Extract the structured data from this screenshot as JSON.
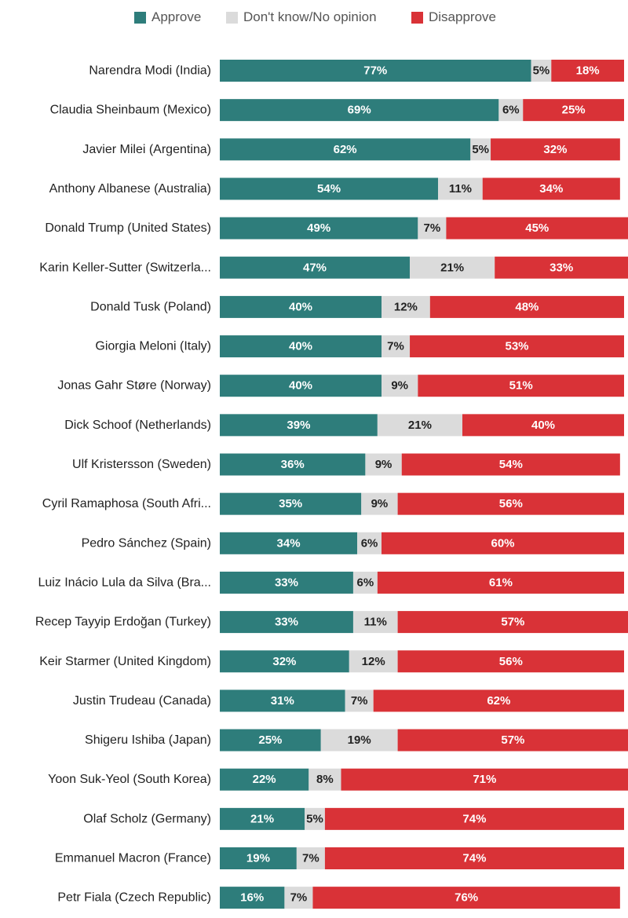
{
  "chart_data": {
    "type": "bar",
    "orientation": "horizontal",
    "stacked": true,
    "title": "",
    "xlabel": "",
    "ylabel": "",
    "xlim": [
      0,
      100
    ],
    "grid": false,
    "legend_position": "top-center",
    "categories": [
      "Narendra Modi (India)",
      "Claudia Sheinbaum (Mexico)",
      "Javier Milei (Argentina)",
      "Anthony Albanese (Australia)",
      "Donald Trump (United States)",
      "Karin Keller-Sutter (Switzerla...",
      "Donald Tusk (Poland)",
      "Giorgia Meloni (Italy)",
      "Jonas Gahr Støre (Norway)",
      "Dick Schoof (Netherlands)",
      "Ulf Kristersson (Sweden)",
      "Cyril Ramaphosa (South Afri...",
      "Pedro Sánchez (Spain)",
      "Luiz Inácio Lula da Silva (Bra...",
      "Recep Tayyip Erdoğan (Turkey)",
      "Keir Starmer (United Kingdom)",
      "Justin Trudeau (Canada)",
      "Shigeru Ishiba (Japan)",
      "Yoon Suk-Yeol (South Korea)",
      "Olaf Scholz (Germany)",
      "Emmanuel Macron (France)",
      "Petr Fiala (Czech Republic)"
    ],
    "series": [
      {
        "name": "Approve",
        "color": "#2E7D7B",
        "label_color": "#ffffff",
        "values": [
          77,
          69,
          62,
          54,
          49,
          47,
          40,
          40,
          40,
          39,
          36,
          35,
          34,
          33,
          33,
          32,
          31,
          25,
          22,
          21,
          19,
          16
        ]
      },
      {
        "name": "Don't know/No opinion",
        "color": "#DBDBDB",
        "label_color": "#222222",
        "values": [
          5,
          6,
          5,
          11,
          7,
          21,
          12,
          7,
          9,
          21,
          9,
          9,
          6,
          6,
          11,
          12,
          7,
          19,
          8,
          5,
          7,
          7
        ]
      },
      {
        "name": "Disapprove",
        "color": "#D93237",
        "label_color": "#ffffff",
        "values": [
          18,
          25,
          32,
          34,
          45,
          33,
          48,
          53,
          51,
          40,
          54,
          56,
          60,
          61,
          57,
          56,
          62,
          57,
          71,
          74,
          74,
          76
        ]
      }
    ]
  }
}
